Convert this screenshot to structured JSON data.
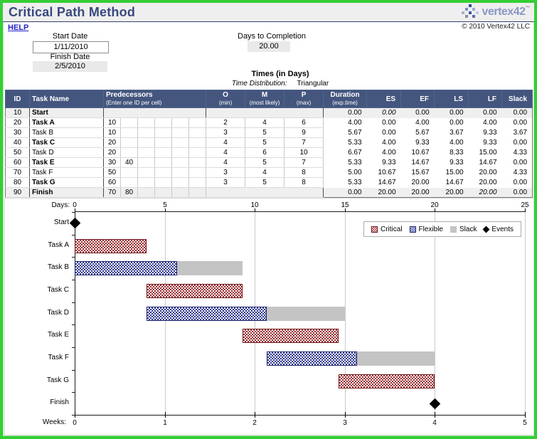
{
  "page_title": "Critical Path Method",
  "help_link": "HELP",
  "header": {
    "start_date_label": "Start Date",
    "start_date_value": "1/11/2010",
    "finish_date_label": "Finish Date",
    "finish_date_value": "2/5/2010",
    "days_to_completion_label": "Days to Completion",
    "days_to_completion_value": "20.00",
    "logo_text": "vertex42",
    "logo_tm": "™",
    "copyright": "© 2010 Vertex42 LLC"
  },
  "times": {
    "title": "Times (in Days)",
    "distribution_label": "Time Distribution:",
    "distribution_value": "Triangular"
  },
  "table": {
    "columns": {
      "id": "ID",
      "task_name": "Task Name",
      "predecessors": "Predecessors",
      "predecessors_sub": "(Enter one ID per cell)",
      "o": "O",
      "o_sub": "(min)",
      "m": "M",
      "m_sub": "(most likely)",
      "p": "P",
      "p_sub": "(max)",
      "duration": "Duration",
      "duration_sub": "(exp.time)",
      "es": "ES",
      "ef": "EF",
      "ls": "LS",
      "lf": "LF",
      "slack": "Slack"
    },
    "rows": [
      {
        "id": "10",
        "task": "Start",
        "bold": true,
        "shaded": true,
        "preds_plain": true,
        "preds": [
          "",
          "",
          "",
          "",
          "",
          ""
        ],
        "o": "",
        "m": "",
        "p": "",
        "duration": "0.00",
        "es": "0.00",
        "ef": "0.00",
        "ls": "0.00",
        "lf": "0.00",
        "slack": "0.00",
        "italic": [
          "es"
        ]
      },
      {
        "id": "20",
        "task": "Task A",
        "bold": true,
        "shaded": false,
        "preds": [
          "10",
          "",
          "",
          "",
          "",
          ""
        ],
        "o": "2",
        "m": "4",
        "p": "6",
        "duration": "4.00",
        "es": "0.00",
        "ef": "4.00",
        "ls": "0.00",
        "lf": "4.00",
        "slack": "0.00",
        "italic": []
      },
      {
        "id": "30",
        "task": "Task B",
        "bold": false,
        "shaded": false,
        "preds": [
          "10",
          "",
          "",
          "",
          "",
          ""
        ],
        "o": "3",
        "m": "5",
        "p": "9",
        "duration": "5.67",
        "es": "0.00",
        "ef": "5.67",
        "ls": "3.67",
        "lf": "9.33",
        "slack": "3.67",
        "italic": []
      },
      {
        "id": "40",
        "task": "Task C",
        "bold": true,
        "shaded": false,
        "preds": [
          "20",
          "",
          "",
          "",
          "",
          ""
        ],
        "o": "4",
        "m": "5",
        "p": "7",
        "duration": "5.33",
        "es": "4.00",
        "ef": "9.33",
        "ls": "4.00",
        "lf": "9.33",
        "slack": "0.00",
        "italic": []
      },
      {
        "id": "50",
        "task": "Task D",
        "bold": false,
        "shaded": false,
        "preds": [
          "20",
          "",
          "",
          "",
          "",
          ""
        ],
        "o": "4",
        "m": "6",
        "p": "10",
        "duration": "6.67",
        "es": "4.00",
        "ef": "10.67",
        "ls": "8.33",
        "lf": "15.00",
        "slack": "4.33",
        "italic": []
      },
      {
        "id": "60",
        "task": "Task E",
        "bold": true,
        "shaded": false,
        "preds": [
          "30",
          "40",
          "",
          "",
          "",
          ""
        ],
        "o": "4",
        "m": "5",
        "p": "7",
        "duration": "5.33",
        "es": "9.33",
        "ef": "14.67",
        "ls": "9.33",
        "lf": "14.67",
        "slack": "0.00",
        "italic": []
      },
      {
        "id": "70",
        "task": "Task F",
        "bold": false,
        "shaded": false,
        "preds": [
          "50",
          "",
          "",
          "",
          "",
          ""
        ],
        "o": "3",
        "m": "4",
        "p": "8",
        "duration": "5.00",
        "es": "10.67",
        "ef": "15.67",
        "ls": "15.00",
        "lf": "20.00",
        "slack": "4.33",
        "italic": []
      },
      {
        "id": "80",
        "task": "Task G",
        "bold": true,
        "shaded": false,
        "preds": [
          "60",
          "",
          "",
          "",
          "",
          ""
        ],
        "o": "3",
        "m": "5",
        "p": "8",
        "duration": "5.33",
        "es": "14.67",
        "ef": "20.00",
        "ls": "14.67",
        "lf": "20.00",
        "slack": "0.00",
        "italic": []
      },
      {
        "id": "90",
        "task": "Finish",
        "bold": true,
        "shaded": true,
        "preds": [
          "70",
          "80",
          "",
          "",
          "",
          ""
        ],
        "o": "",
        "m": "",
        "p": "",
        "duration": "0.00",
        "es": "20.00",
        "ef": "20.00",
        "ls": "20.00",
        "lf": "20.00",
        "slack": "0.00",
        "italic": [
          "lf"
        ]
      }
    ]
  },
  "chart_data": {
    "type": "gantt",
    "xlim_days": [
      0,
      25
    ],
    "x_axis_top": {
      "label": "Days:",
      "ticks": [
        0,
        5,
        10,
        15,
        20,
        25
      ]
    },
    "x_axis_bottom": {
      "label": "Weeks:",
      "ticks": [
        0,
        1,
        2,
        3,
        4,
        5
      ],
      "days_per_week": 5
    },
    "legend": [
      {
        "label": "Critical",
        "swatch": "critical"
      },
      {
        "label": "Flexible",
        "swatch": "flexible"
      },
      {
        "label": "Slack",
        "swatch": "slack"
      },
      {
        "label": "Events",
        "swatch": "event"
      }
    ],
    "tasks": [
      {
        "name": "Start",
        "kind": "event",
        "day": 0
      },
      {
        "name": "Task A",
        "kind": "critical",
        "start": 0,
        "end": 4
      },
      {
        "name": "Task B",
        "kind": "flexible",
        "start": 0,
        "end": 5.67,
        "slack_end": 9.33
      },
      {
        "name": "Task C",
        "kind": "critical",
        "start": 4,
        "end": 9.33
      },
      {
        "name": "Task D",
        "kind": "flexible",
        "start": 4,
        "end": 10.67,
        "slack_end": 15
      },
      {
        "name": "Task E",
        "kind": "critical",
        "start": 9.33,
        "end": 14.67
      },
      {
        "name": "Task F",
        "kind": "flexible",
        "start": 10.67,
        "end": 15.67,
        "slack_end": 20
      },
      {
        "name": "Task G",
        "kind": "critical",
        "start": 14.67,
        "end": 20
      },
      {
        "name": "Finish",
        "kind": "event",
        "day": 20
      }
    ]
  },
  "colors": {
    "critical": "#9C2A2E",
    "critical_border": "#6E1317",
    "flexible": "#2E3793",
    "flexible_border": "#1A2270",
    "slack": "#C4C4C4",
    "event": "#000000",
    "header_bg": "#44567E",
    "title": "#39497E",
    "link": "#2222CC",
    "grid": "#CBCBCB",
    "frame_green": "#35CE35"
  }
}
